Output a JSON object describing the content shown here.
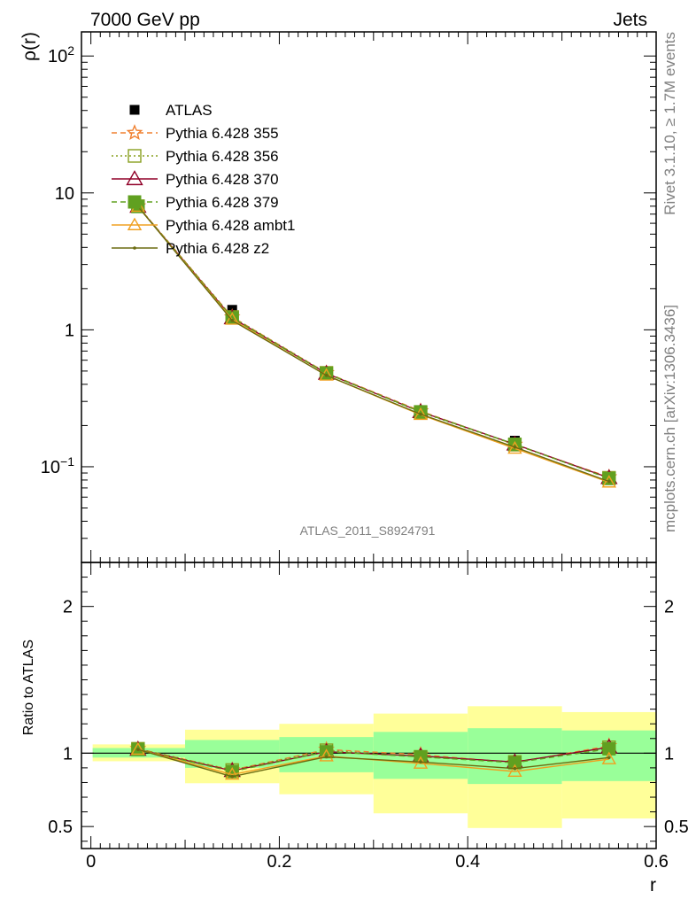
{
  "header": {
    "left_label": "7000 GeV pp",
    "right_label": "Jets"
  },
  "side_labels": {
    "rivet": "Rivet 3.1.10, ≥ 1.7M events",
    "mcplots": "mcplots.cern.ch [arXiv:1306.3436]"
  },
  "chart_data": [
    {
      "type": "line",
      "panel": "main",
      "ylabel": "ρ(r)",
      "xlabel": "",
      "yscale": "log",
      "ylim": [
        0.02,
        150
      ],
      "xlim": [
        -0.01,
        0.6
      ],
      "y_ticks": [
        {
          "value": 0.1,
          "base": "10",
          "exp": "−1"
        },
        {
          "value": 1,
          "label": "1"
        },
        {
          "value": 10,
          "label": "10"
        },
        {
          "value": 100,
          "base": "10",
          "exp": "2"
        }
      ],
      "annotation": "ATLAS_2011_S8924791",
      "legend_position": "top-left",
      "x": [
        0.05,
        0.15,
        0.25,
        0.35,
        0.45,
        0.55
      ],
      "series": [
        {
          "name": "ATLAS",
          "color": "#000000",
          "marker": "square",
          "style": "none",
          "values": [
            7.75,
            1.4,
            0.475,
            0.258,
            0.155,
            0.08
          ]
        },
        {
          "name": "Pythia 6.428 355",
          "color": "#f08030",
          "marker": "star",
          "style": "dashed",
          "values": [
            8.0,
            1.24,
            0.485,
            0.255,
            0.145,
            0.084
          ]
        },
        {
          "name": "Pythia 6.428 356",
          "color": "#88a020",
          "marker": "open-square",
          "style": "dotted",
          "values": [
            8.0,
            1.24,
            0.485,
            0.25,
            0.145,
            0.083
          ]
        },
        {
          "name": "Pythia 6.428 370",
          "color": "#900028",
          "marker": "open-triangle",
          "style": "solid",
          "values": [
            7.95,
            1.22,
            0.48,
            0.252,
            0.146,
            0.083
          ]
        },
        {
          "name": "Pythia 6.428 379",
          "color": "#60a020",
          "marker": "filled-square",
          "style": "dashed",
          "values": [
            7.95,
            1.22,
            0.48,
            0.252,
            0.146,
            0.082
          ]
        },
        {
          "name": "Pythia 6.428 ambt1",
          "color": "#f0a020",
          "marker": "open-triangle-small",
          "style": "solid",
          "values": [
            7.95,
            1.19,
            0.465,
            0.24,
            0.136,
            0.077
          ]
        },
        {
          "name": "Pythia 6.428 z2",
          "color": "#6b6b10",
          "marker": "dot",
          "style": "solid",
          "values": [
            7.95,
            1.17,
            0.465,
            0.242,
            0.139,
            0.078
          ]
        }
      ]
    },
    {
      "type": "line",
      "panel": "ratio",
      "ylabel": "Ratio to ATLAS",
      "xlabel": "r",
      "ylim": [
        0.35,
        2.3
      ],
      "xlim": [
        -0.01,
        0.6
      ],
      "y_ticks": [
        0.5,
        1,
        2
      ],
      "y_tick_labels": [
        "0.5",
        "1",
        "2"
      ],
      "x_ticks": [
        0,
        0.2,
        0.4,
        0.6
      ],
      "x_tick_labels": [
        "0",
        "0.2",
        "0.4",
        "0.6"
      ],
      "reference_line": 1,
      "x": [
        0.05,
        0.15,
        0.25,
        0.35,
        0.45,
        0.55
      ],
      "bins": [
        {
          "x0": 0.0,
          "x1": 0.1,
          "inner": [
            0.97,
            1.035
          ],
          "outer": [
            0.945,
            1.06
          ]
        },
        {
          "x0": 0.1,
          "x1": 0.2,
          "inner": [
            0.9,
            1.09
          ],
          "outer": [
            0.795,
            1.16
          ]
        },
        {
          "x0": 0.2,
          "x1": 0.3,
          "inner": [
            0.87,
            1.11
          ],
          "outer": [
            0.72,
            1.2
          ]
        },
        {
          "x0": 0.3,
          "x1": 0.4,
          "inner": [
            0.825,
            1.145
          ],
          "outer": [
            0.59,
            1.27
          ]
        },
        {
          "x0": 0.4,
          "x1": 0.5,
          "inner": [
            0.79,
            1.17
          ],
          "outer": [
            0.49,
            1.32
          ]
        },
        {
          "x0": 0.5,
          "x1": 0.6,
          "inner": [
            0.81,
            1.155
          ],
          "outer": [
            0.555,
            1.28
          ]
        }
      ],
      "series": [
        {
          "name": "Pythia 6.428 355",
          "color": "#f08030",
          "marker": "star",
          "style": "dashed",
          "values": [
            1.03,
            0.885,
            1.025,
            0.99,
            0.935,
            1.05
          ]
        },
        {
          "name": "Pythia 6.428 356",
          "color": "#88a020",
          "marker": "open-square",
          "style": "dotted",
          "values": [
            1.03,
            0.885,
            1.02,
            0.975,
            0.94,
            1.04
          ]
        },
        {
          "name": "Pythia 6.428 370",
          "color": "#900028",
          "marker": "open-triangle",
          "style": "solid",
          "values": [
            1.025,
            0.88,
            1.01,
            0.98,
            0.94,
            1.04
          ]
        },
        {
          "name": "Pythia 6.428 379",
          "color": "#60a020",
          "marker": "filled-square",
          "style": "dashed",
          "values": [
            1.025,
            0.875,
            1.01,
            0.975,
            0.935,
            1.03
          ]
        },
        {
          "name": "Pythia 6.428 ambt1",
          "color": "#f0a020",
          "marker": "open-triangle-small",
          "style": "solid",
          "values": [
            1.025,
            0.855,
            0.98,
            0.93,
            0.875,
            0.96
          ]
        },
        {
          "name": "Pythia 6.428 z2",
          "color": "#6b6b10",
          "marker": "dot",
          "style": "solid",
          "values": [
            1.025,
            0.84,
            0.975,
            0.94,
            0.895,
            0.97
          ]
        }
      ]
    }
  ]
}
